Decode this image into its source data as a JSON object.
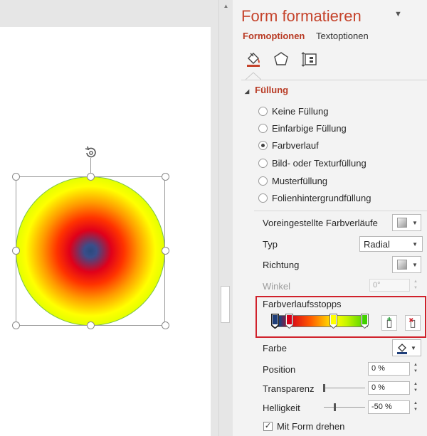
{
  "pane": {
    "title": "Form formatieren",
    "tabs": [
      {
        "label": "Formoptionen",
        "active": true
      },
      {
        "label": "Textoptionen",
        "active": false
      }
    ],
    "categories": [
      "fill-line-icon",
      "effects-pentagon-icon",
      "size-properties-icon"
    ]
  },
  "fill_section": {
    "heading": "Füllung",
    "options": [
      {
        "label": "Keine Füllung",
        "selected": false
      },
      {
        "label": "Einfarbige Füllung",
        "selected": false
      },
      {
        "label": "Farbverlauf",
        "selected": true
      },
      {
        "label": "Bild- oder Texturfüllung",
        "selected": false
      },
      {
        "label": "Musterfüllung",
        "selected": false
      },
      {
        "label": "Folienhintergrundfüllung",
        "selected": false
      }
    ]
  },
  "gradient": {
    "preset_label": "Voreingestellte Farbverläufe",
    "type_label": "Typ",
    "type_value": "Radial",
    "direction_label": "Richtung",
    "angle_label": "Winkel",
    "angle_value": "0°",
    "stops_label": "Farbverlaufsstopps",
    "stops": [
      {
        "position": 0.03,
        "color": "#1f3f7a",
        "selected": true
      },
      {
        "position": 0.18,
        "color": "#d4001a",
        "selected": false
      },
      {
        "position": 0.64,
        "color": "#ffff00",
        "selected": false
      },
      {
        "position": 0.97,
        "color": "#40d000",
        "selected": false
      }
    ],
    "color_label": "Farbe",
    "position_label": "Position",
    "position_value": "0 %",
    "transparency_label": "Transparenz",
    "transparency_value": "0 %",
    "transparency_level": 0,
    "brightness_label": "Helligkeit",
    "brightness_value": "-50 %",
    "brightness_level": 0.25,
    "rotate_with_shape_label": "Mit Form drehen",
    "rotate_with_shape_checked": true
  },
  "colors": {
    "accent": "#c5432b",
    "highlight_box": "#d0212b"
  }
}
